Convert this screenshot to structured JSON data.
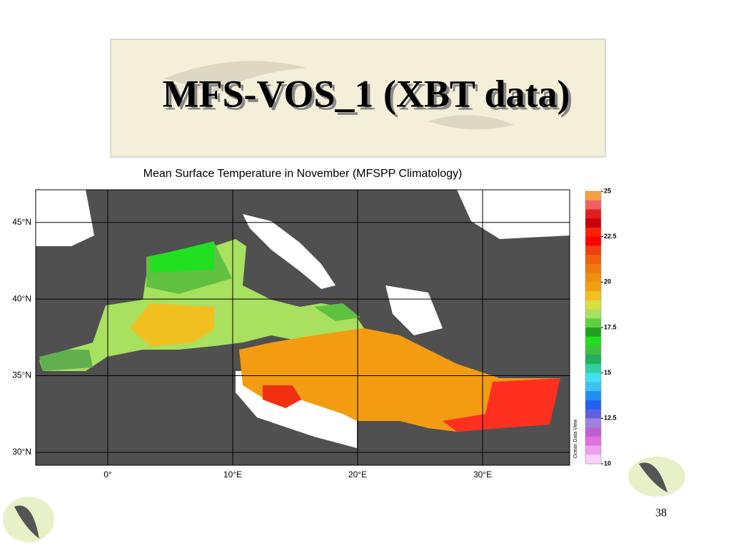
{
  "header": {
    "title": "MFS-VOS_1 (XBT data)"
  },
  "map": {
    "title": "Mean Surface Temperature in November (MFSPP Climatology)",
    "xlim": [
      -5.77,
      36.97
    ],
    "ylim": [
      29.16,
      47.13
    ],
    "latticks": [
      {
        "value": 45,
        "label": "45°N"
      },
      {
        "value": 40,
        "label": "40°N"
      },
      {
        "value": 35,
        "label": "35°N"
      },
      {
        "value": 30,
        "label": "30°N"
      }
    ],
    "lonticks": [
      {
        "value": 0,
        "label": "0°"
      },
      {
        "value": 10,
        "label": "10°E"
      },
      {
        "value": 20,
        "label": "20°E"
      },
      {
        "value": 30,
        "label": "30°E"
      }
    ],
    "colorbar": {
      "range": [
        10,
        25
      ],
      "ticks": [
        25,
        22.5,
        20,
        17.5,
        15,
        12.5,
        10
      ],
      "colors": [
        "#f7a040",
        "#f06060",
        "#e02020",
        "#c80010",
        "#ff2000",
        "#ff0000",
        "#f04010",
        "#f06010",
        "#f07a10",
        "#f09010",
        "#f0a010",
        "#f0c020",
        "#d8e040",
        "#a8e060",
        "#60d040",
        "#20a020",
        "#20e020",
        "#40c040",
        "#20b060",
        "#30d0a0",
        "#40e0f0",
        "#40c0f0",
        "#2090f0",
        "#2060f0",
        "#6060e0",
        "#a080e0",
        "#c060d0",
        "#e070e0",
        "#f0a0f0",
        "#f8d0f8"
      ],
      "credit": "Ocean Data View"
    }
  },
  "footer": {
    "page": "38"
  }
}
